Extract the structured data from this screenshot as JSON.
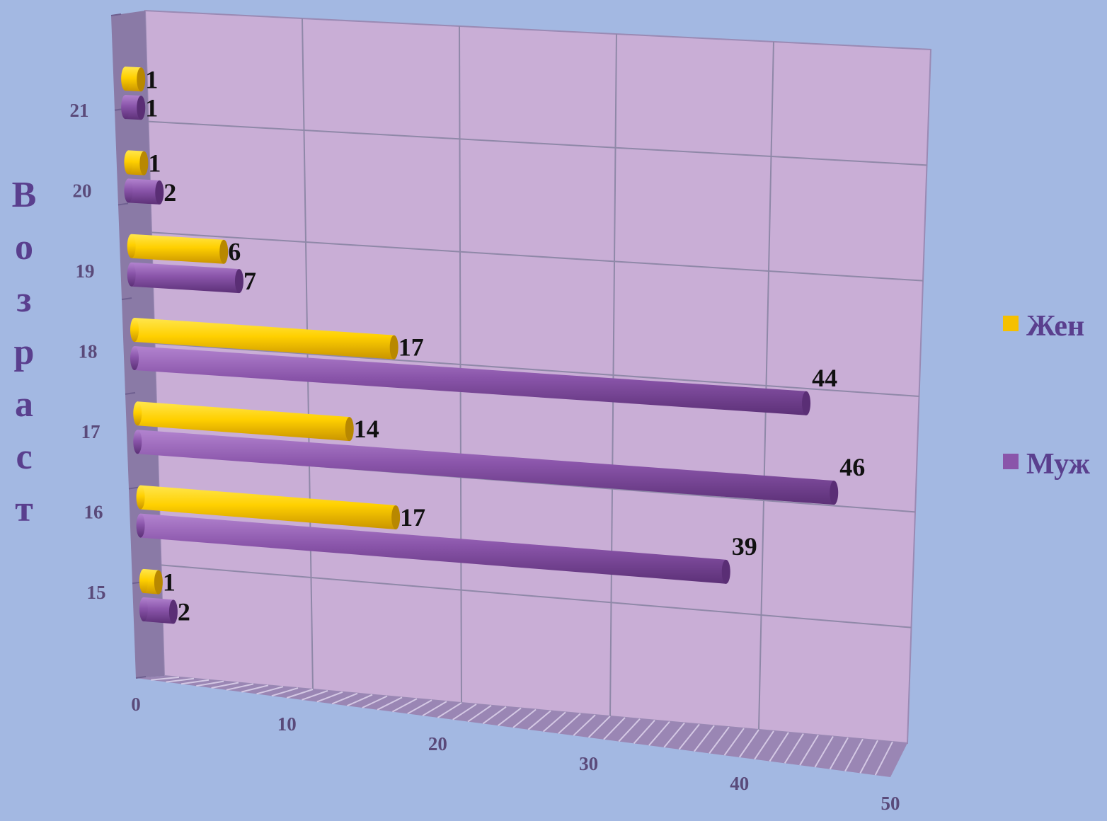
{
  "chart_data": {
    "type": "bar",
    "orientation": "horizontal",
    "categories": [
      "15",
      "16",
      "17",
      "18",
      "19",
      "20",
      "21"
    ],
    "series": [
      {
        "name": "Жен",
        "color": "#f5c000",
        "values": [
          1,
          17,
          14,
          17,
          6,
          1,
          1
        ]
      },
      {
        "name": "Муж",
        "color": "#8a55aa",
        "values": [
          2,
          39,
          46,
          44,
          7,
          2,
          1
        ]
      }
    ],
    "xticks": [
      "0",
      "10",
      "20",
      "30",
      "40",
      "50"
    ],
    "xlim": [
      0,
      50
    ],
    "ylabel": "Возраст",
    "xlabel": "",
    "title": "",
    "grid": true,
    "legend_position": "right"
  }
}
